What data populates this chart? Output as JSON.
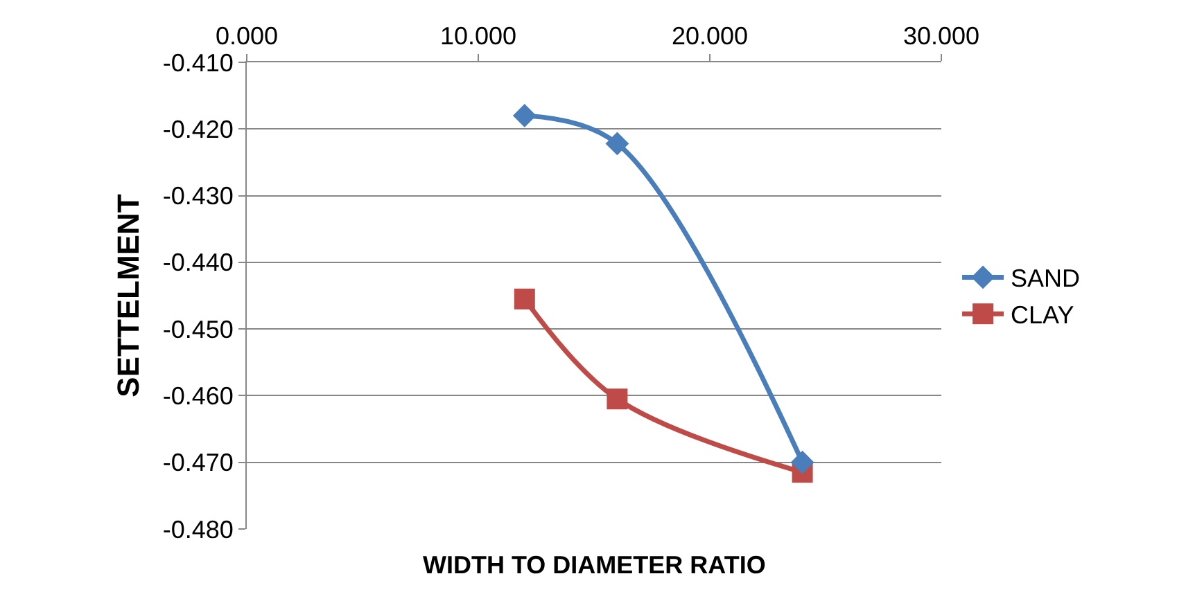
{
  "chart_data": {
    "type": "line",
    "xlabel": "WIDTH TO DIAMETER RATIO",
    "ylabel": "SETTELMENT",
    "series": [
      {
        "name": "SAND",
        "color": "#4a7ebb",
        "marker": "diamond",
        "x": [
          12,
          16,
          24
        ],
        "values": [
          -0.418,
          -0.4222,
          -0.47
        ]
      },
      {
        "name": "CLAY",
        "color": "#be4b48",
        "marker": "square",
        "x": [
          12,
          16,
          24
        ],
        "values": [
          -0.4455,
          -0.4605,
          -0.4715
        ]
      }
    ],
    "xlim": [
      0,
      30
    ],
    "xticks": [
      {
        "value": 0,
        "label": "0.000"
      },
      {
        "value": 10,
        "label": "10.000"
      },
      {
        "value": 20,
        "label": "20.000"
      },
      {
        "value": 30,
        "label": "30.000"
      }
    ],
    "ylim": [
      -0.48,
      -0.41
    ],
    "yticks": [
      {
        "value": -0.48,
        "label": "-0.480"
      },
      {
        "value": -0.47,
        "label": "-0.470"
      },
      {
        "value": -0.46,
        "label": "-0.460"
      },
      {
        "value": -0.45,
        "label": "-0.450"
      },
      {
        "value": -0.44,
        "label": "-0.440"
      },
      {
        "value": -0.43,
        "label": "-0.430"
      },
      {
        "value": -0.42,
        "label": "-0.420"
      },
      {
        "value": -0.41,
        "label": "-0.410"
      }
    ],
    "grid": "y",
    "legend": "right",
    "line_style": "solid"
  }
}
